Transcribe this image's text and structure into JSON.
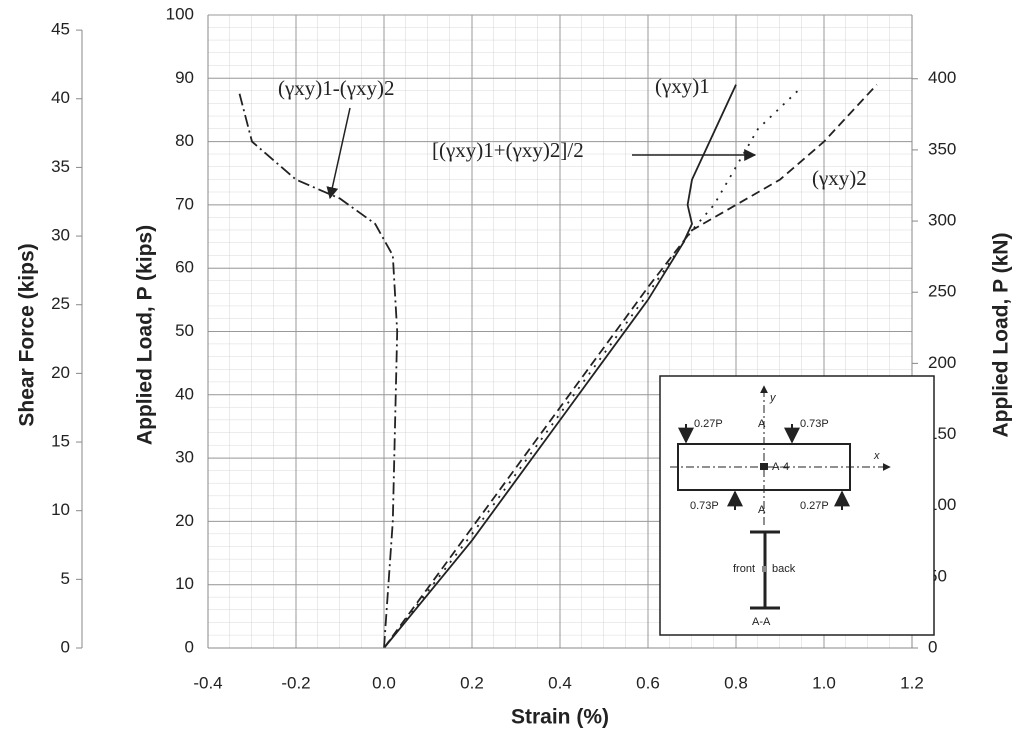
{
  "chart_data": {
    "type": "line",
    "xlabel": "Strain  (%)",
    "ylabel": "Applied Load, P  (kips)",
    "y2label": "Applied Load, P  (kN)",
    "y3label": "Shear Force  (kips)",
    "xlim": [
      -0.4,
      1.2
    ],
    "xticks": [
      -0.4,
      -0.2,
      {
        "value": 0,
        "label": "0.0"
      },
      0.2,
      0.4,
      0.6,
      0.8,
      {
        "value": 1,
        "label": "1.0"
      },
      1.2
    ],
    "ylim": [
      0,
      100
    ],
    "yticks": [
      0,
      10,
      20,
      30,
      40,
      50,
      60,
      70,
      80,
      90,
      100
    ],
    "y2lim": [
      0,
      444.8
    ],
    "y2ticks": [
      0,
      50,
      100,
      150,
      200,
      250,
      300,
      350,
      400
    ],
    "y3lim": [
      0,
      46.1
    ],
    "y3ticks": [
      0,
      5,
      10,
      15,
      20,
      25,
      30,
      35,
      40,
      45
    ],
    "grid": true,
    "series": [
      {
        "name": "(γxy)1",
        "color": "#222222",
        "dash": "none",
        "x": [
          0,
          0.2,
          0.4,
          0.6,
          0.68,
          0.7,
          0.69,
          0.7,
          0.74,
          0.78,
          0.8
        ],
        "y": [
          0,
          17,
          36,
          55,
          64,
          67,
          70,
          74,
          80,
          86,
          89
        ]
      },
      {
        "name": "(γxy)2",
        "color": "#222222",
        "dash": "9 5",
        "x": [
          0,
          0.2,
          0.4,
          0.6,
          0.7,
          0.8,
          0.9,
          1.0,
          1.12
        ],
        "y": [
          0,
          19,
          38,
          57,
          66,
          70,
          74,
          80,
          89
        ]
      },
      {
        "name": "[(γxy)1+(γxy)2]/2",
        "color": "#222222",
        "dash": "2 7",
        "x": [
          0,
          0.2,
          0.4,
          0.6,
          0.7,
          0.75,
          0.8,
          0.85,
          0.94
        ],
        "y": [
          0,
          18,
          37,
          56,
          66,
          70,
          76,
          82,
          88
        ]
      },
      {
        "name": "(γxy)1-(γxy)2",
        "color": "#222222",
        "dash": "12 4 2 4",
        "x": [
          0,
          0.02,
          0.03,
          0.02,
          -0.02,
          -0.1,
          -0.2,
          -0.3,
          -0.33
        ],
        "y": [
          0,
          20,
          50,
          62,
          67,
          71,
          74,
          80,
          88
        ]
      }
    ],
    "inset_labels": [
      "0.27P",
      "0.73P",
      "A",
      "y",
      "x",
      "A-4",
      "0.73P",
      "A",
      "0.27P",
      "front",
      "back",
      "A-A"
    ]
  }
}
